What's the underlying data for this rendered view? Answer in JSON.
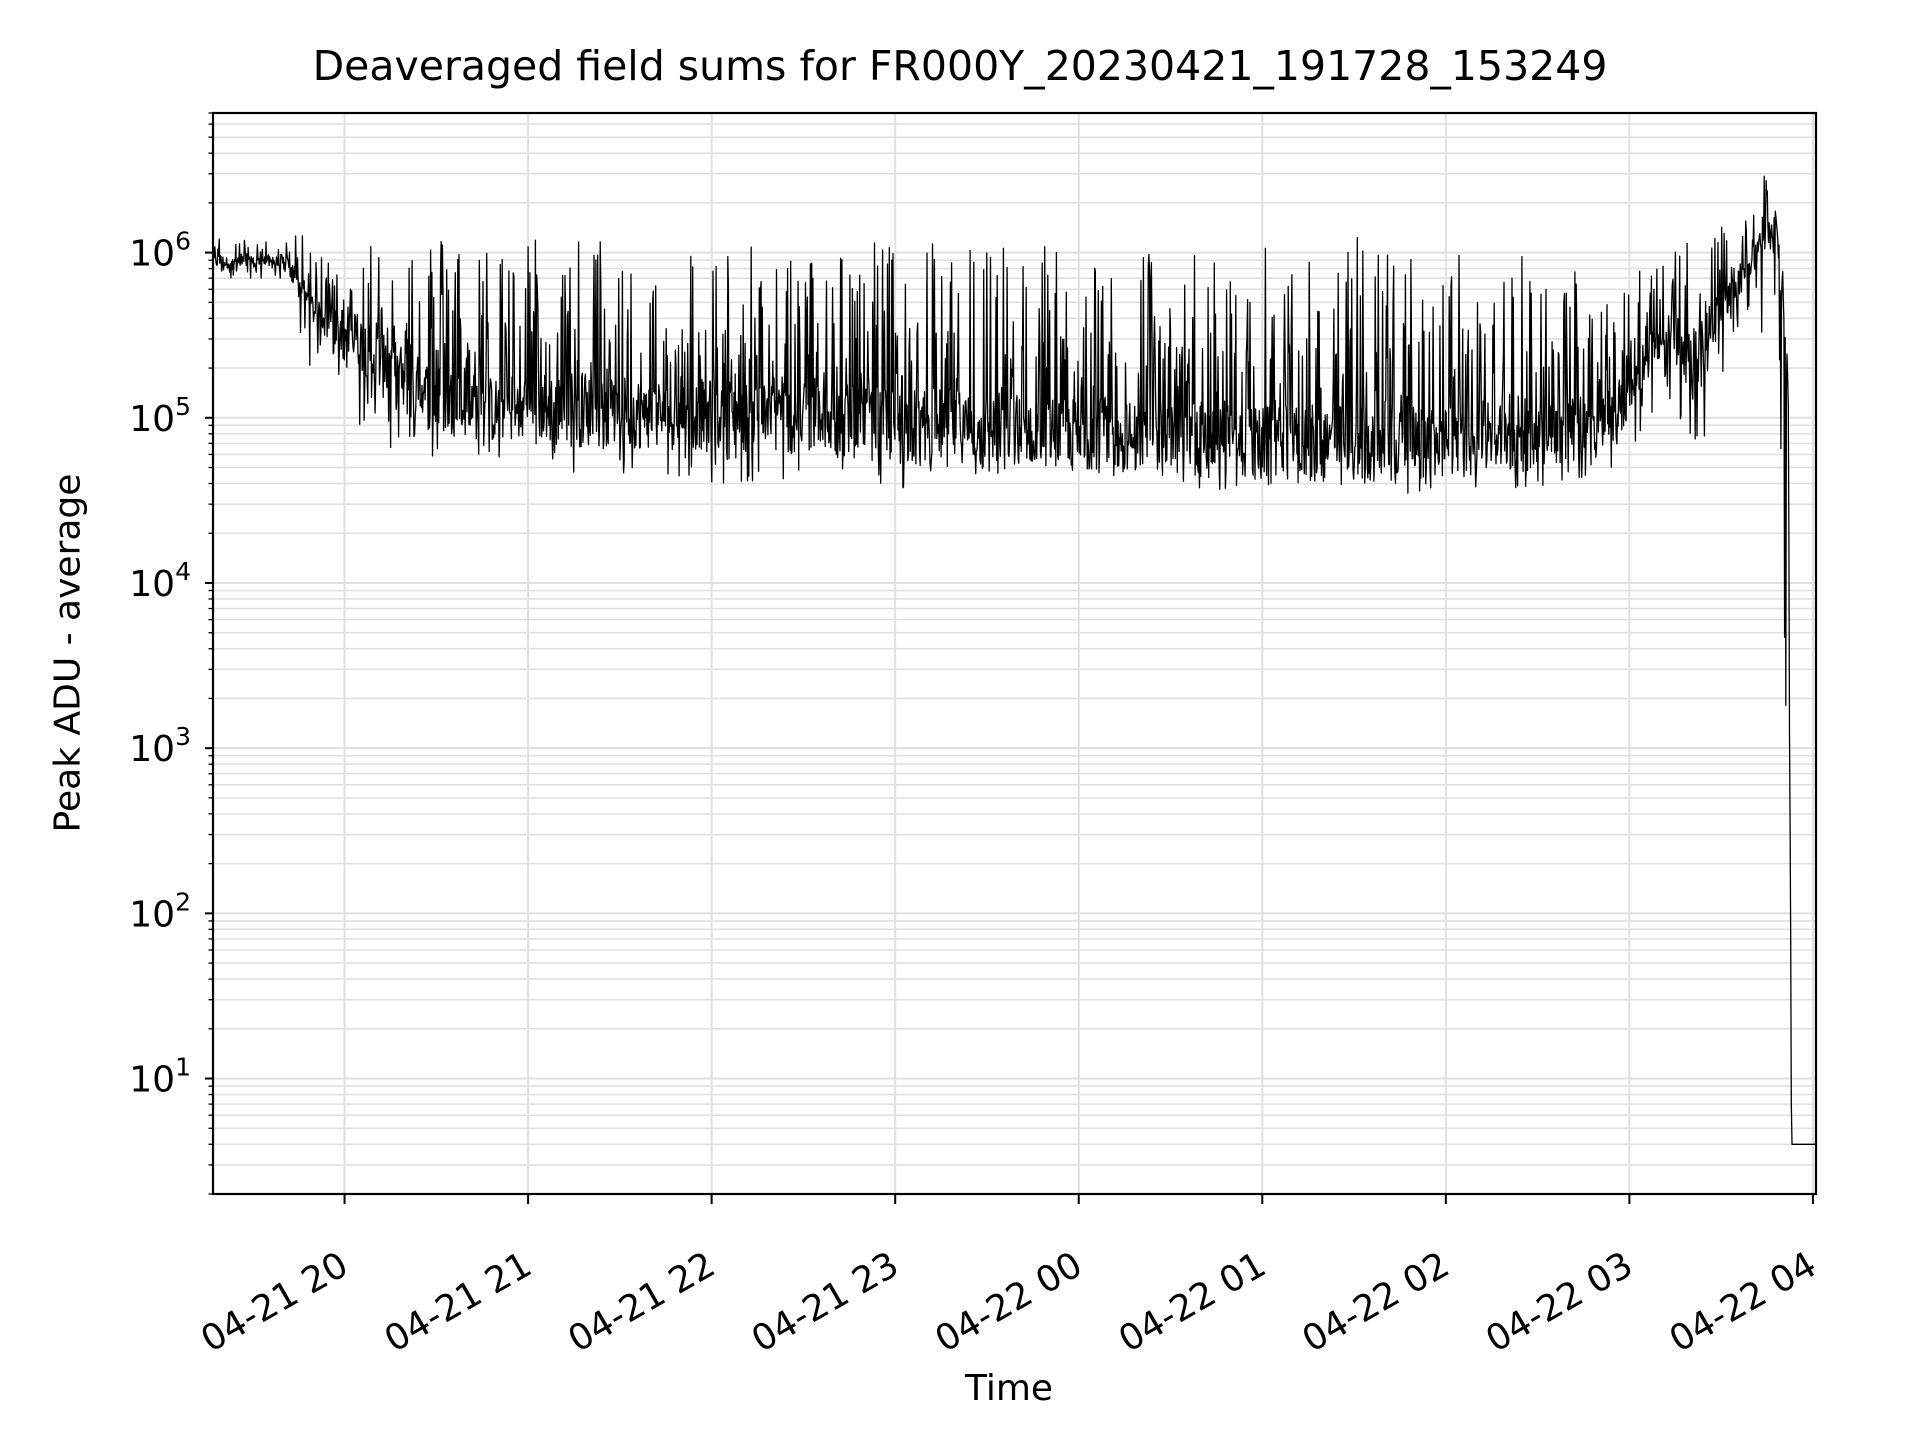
{
  "chart_data": {
    "type": "line",
    "title": "Deaveraged field sums for FR000Y_20230421_191728_153249",
    "xlabel": "Time",
    "ylabel": "Peak ADU - average",
    "yscale": "log",
    "ylim": [
      2,
      7000000
    ],
    "xlim": [
      "2023-04-21 19:17",
      "2023-04-22 04:01"
    ],
    "grid": true,
    "line_color": "#000000",
    "grid_color": "#e0e0e0",
    "x_ticks": [
      "04-21 20",
      "04-21 21",
      "04-21 22",
      "04-21 23",
      "04-22 00",
      "04-22 01",
      "04-22 02",
      "04-22 03",
      "04-22 04"
    ],
    "x_tick_times": [
      "2023-04-21 20:00",
      "2023-04-21 21:00",
      "2023-04-21 22:00",
      "2023-04-21 23:00",
      "2023-04-22 00:00",
      "2023-04-22 01:00",
      "2023-04-22 02:00",
      "2023-04-22 03:00",
      "2023-04-22 04:00"
    ],
    "y_ticks": [
      {
        "base": "10",
        "exp": "1",
        "value": 10
      },
      {
        "base": "10",
        "exp": "2",
        "value": 100
      },
      {
        "base": "10",
        "exp": "3",
        "value": 1000
      },
      {
        "base": "10",
        "exp": "4",
        "value": 10000
      },
      {
        "base": "10",
        "exp": "5",
        "value": 100000
      },
      {
        "base": "10",
        "exp": "6",
        "value": 1000000
      }
    ],
    "series": [
      {
        "x": [
          "2023-04-21 19:17",
          "2023-04-21 19:25",
          "2023-04-21 19:33",
          "2023-04-21 19:40",
          "2023-04-21 19:44",
          "2023-04-21 19:48",
          "2023-04-21 19:52",
          "2023-04-21 19:56",
          "2023-04-21 20:00",
          "2023-04-21 20:04",
          "2023-04-21 20:09",
          "2023-04-21 20:13",
          "2023-04-21 20:17",
          "2023-04-21 20:23",
          "2023-04-21 20:30",
          "2023-04-21 20:40",
          "2023-04-21 20:50",
          "2023-04-21 21:00",
          "2023-04-21 21:15",
          "2023-04-21 21:30",
          "2023-04-21 21:45",
          "2023-04-21 22:00",
          "2023-04-21 22:15",
          "2023-04-21 22:30",
          "2023-04-21 22:45",
          "2023-04-21 23:00",
          "2023-04-21 23:15",
          "2023-04-21 23:30",
          "2023-04-21 23:45",
          "2023-04-22 00:00",
          "2023-04-22 00:15",
          "2023-04-22 00:30",
          "2023-04-22 00:45",
          "2023-04-22 01:00",
          "2023-04-22 01:15",
          "2023-04-22 01:30",
          "2023-04-22 01:45",
          "2023-04-22 02:00",
          "2023-04-22 02:15",
          "2023-04-22 02:30",
          "2023-04-22 02:45",
          "2023-04-22 02:55",
          "2023-04-22 03:00",
          "2023-04-22 03:07",
          "2023-04-22 03:13",
          "2023-04-22 03:20",
          "2023-04-22 03:26",
          "2023-04-22 03:33",
          "2023-04-22 03:40",
          "2023-04-22 03:44",
          "2023-04-22 03:46",
          "2023-04-22 03:48",
          "2023-04-22 03:50",
          "2023-04-22 03:52",
          "2023-04-22 03:53",
          "2023-04-22 04:01"
        ],
        "y": [
          900000,
          850000,
          880000,
          870000,
          700000,
          500000,
          400000,
          350000,
          350000,
          300000,
          250000,
          200000,
          180000,
          150000,
          130000,
          120000,
          110000,
          120000,
          110000,
          110000,
          105000,
          105000,
          100000,
          100000,
          95000,
          90000,
          90000,
          88000,
          85000,
          80000,
          78000,
          75000,
          73000,
          70000,
          72000,
          70000,
          70000,
          70000,
          75000,
          80000,
          90000,
          100000,
          150000,
          250000,
          250000,
          200000,
          300000,
          600000,
          900000,
          1200000,
          1300000,
          1500000,
          600000,
          60000,
          4,
          4
        ],
        "spike_high": [
          1400000,
          1200000,
          1200000,
          1100000,
          1700000,
          1000000,
          1000000,
          1000000,
          1500000,
          1300000,
          1300000,
          1200000,
          1400000,
          1300000,
          1300000,
          1200000,
          1100000,
          1300000,
          1300000,
          1200000,
          1100000,
          1100000,
          1100000,
          1000000,
          1100000,
          1300000,
          1300000,
          1200000,
          1200000,
          1200000,
          1000000,
          1100000,
          1000000,
          1100000,
          1100000,
          1300000,
          1100000,
          1000000,
          1000000,
          1100000,
          800000,
          900000,
          900000,
          800000,
          1000000,
          1200000,
          1200000,
          1600000,
          1800000,
          3500000,
          1700000,
          1700000,
          1000000,
          100000,
          4,
          4
        ],
        "spike_low": [
          700000,
          700000,
          700000,
          600000,
          400000,
          200000,
          250000,
          200000,
          150000,
          90000,
          80000,
          60000,
          55000,
          50000,
          50000,
          55000,
          50000,
          50000,
          45000,
          42000,
          40000,
          40000,
          40000,
          38000,
          36000,
          36000,
          40000,
          42000,
          45000,
          45000,
          42000,
          38000,
          36000,
          38000,
          36000,
          36000,
          35000,
          34000,
          35000,
          38000,
          40000,
          45000,
          60000,
          100000,
          120000,
          80000,
          50000,
          300000,
          400000,
          300000,
          300000,
          400000,
          30000,
          5,
          4,
          4
        ]
      }
    ]
  }
}
